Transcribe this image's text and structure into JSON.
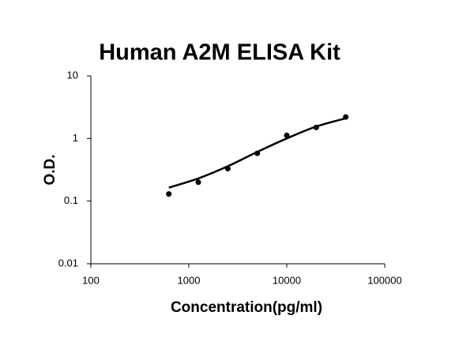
{
  "chart_data": {
    "type": "scatter",
    "title": "Human A2M ELISA Kit",
    "x_label": "Concentration(pg/ml)",
    "y_label": "O.D.",
    "x_scale": "log",
    "y_scale": "log",
    "xlim": [
      100,
      100000
    ],
    "xticks": [
      100,
      1000,
      10000,
      100000
    ],
    "ylim": [
      0.01,
      10
    ],
    "yticks": [
      0.01,
      0.1,
      1,
      10
    ],
    "series": [
      {
        "color": "#000000",
        "x": [
          625,
          1250,
          2500,
          5000,
          10000,
          20000,
          40000
        ],
        "values": [
          0.13,
          0.2,
          0.33,
          0.58,
          1.12,
          1.5,
          2.2
        ]
      }
    ],
    "curve": {
      "color": "#000000",
      "x": [
        625,
        1250,
        2500,
        5000,
        10000,
        20000,
        40000
      ],
      "values": [
        0.164,
        0.23,
        0.36,
        0.61,
        1.0,
        1.55,
        2.1
      ]
    }
  }
}
